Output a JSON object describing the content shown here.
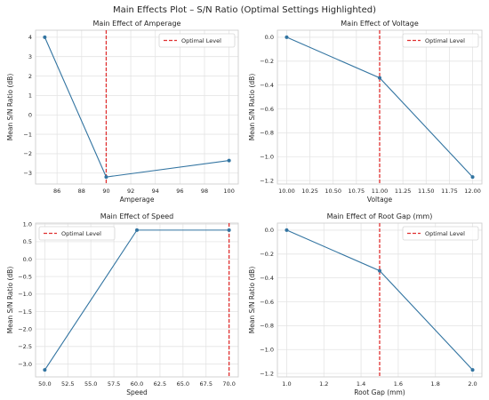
{
  "figure": {
    "title": "Main Effects Plot – S/N Ratio (Optimal Settings Highlighted)"
  },
  "colors": {
    "line": "#3274a1",
    "optimal": "#e03030",
    "grid": "#e4e4e4",
    "frame": "#cfcfcf"
  },
  "chart_data": [
    {
      "type": "line",
      "title": "Main Effect of Amperage",
      "xlabel": "Amperage",
      "ylabel": "Mean S/N Ratio (dB)",
      "x": [
        85,
        90,
        100
      ],
      "y": [
        4.0,
        -3.2,
        -2.35
      ],
      "optimal_x": 90,
      "legend": {
        "label": "Optimal Level",
        "position": "top-right"
      },
      "xlim": [
        84.25,
        100.75
      ],
      "ylim": [
        -3.56,
        4.36
      ],
      "xticks": [
        86,
        88,
        90,
        92,
        94,
        96,
        98,
        100
      ],
      "xtick_labels": [
        "86",
        "88",
        "90",
        "92",
        "94",
        "96",
        "98",
        "100"
      ],
      "yticks": [
        -3,
        -2,
        -1,
        0,
        1,
        2,
        3,
        4
      ],
      "ytick_labels": [
        "−3",
        "−2",
        "−1",
        "0",
        "1",
        "2",
        "3",
        "4"
      ],
      "grid": true
    },
    {
      "type": "line",
      "title": "Main Effect of Voltage",
      "xlabel": "Voltage",
      "ylabel": "Mean S/N Ratio (dB)",
      "x": [
        10,
        11,
        12
      ],
      "y": [
        0.0,
        -0.34,
        -1.17
      ],
      "optimal_x": 11,
      "legend": {
        "label": "Optimal Level",
        "position": "top-right"
      },
      "xlim": [
        9.9,
        12.1
      ],
      "ylim": [
        -1.229,
        0.059
      ],
      "xticks": [
        10.0,
        10.25,
        10.5,
        10.75,
        11.0,
        11.25,
        11.5,
        11.75,
        12.0
      ],
      "xtick_labels": [
        "10.00",
        "10.25",
        "10.50",
        "10.75",
        "11.00",
        "11.25",
        "11.50",
        "11.75",
        "12.00"
      ],
      "yticks": [
        0.0,
        -0.2,
        -0.4,
        -0.6,
        -0.8,
        -1.0,
        -1.2
      ],
      "ytick_labels": [
        "0.0",
        "−0.2",
        "−0.4",
        "−0.6",
        "−0.8",
        "−1.0",
        "−1.2"
      ],
      "grid": true
    },
    {
      "type": "line",
      "title": "Main Effect of Speed",
      "xlabel": "Speed",
      "ylabel": "Mean S/N Ratio (dB)",
      "x": [
        50,
        60,
        70
      ],
      "y": [
        -3.17,
        0.83,
        0.83
      ],
      "optimal_x": 70,
      "legend": {
        "label": "Optimal Level",
        "position": "top-left"
      },
      "xlim": [
        49,
        71
      ],
      "ylim": [
        -3.37,
        1.03
      ],
      "xticks": [
        50.0,
        52.5,
        55.0,
        57.5,
        60.0,
        62.5,
        65.0,
        67.5,
        70.0
      ],
      "xtick_labels": [
        "50.0",
        "52.5",
        "55.0",
        "57.5",
        "60.0",
        "62.5",
        "65.0",
        "67.5",
        "70.0"
      ],
      "yticks": [
        1.0,
        0.5,
        0.0,
        -0.5,
        -1.0,
        -1.5,
        -2.0,
        -2.5,
        -3.0
      ],
      "ytick_labels": [
        "1.0",
        "0.5",
        "0.0",
        "−0.5",
        "−1.0",
        "−1.5",
        "−2.0",
        "−2.5",
        "−3.0"
      ],
      "grid": true
    },
    {
      "type": "line",
      "title": "Main Effect of Root Gap (mm)",
      "xlabel": "Root Gap (mm)",
      "ylabel": "Mean S/N Ratio (dB)",
      "x": [
        1.0,
        1.5,
        2.0
      ],
      "y": [
        0.0,
        -0.34,
        -1.17
      ],
      "optimal_x": 1.5,
      "legend": {
        "label": "Optimal Level",
        "position": "top-right"
      },
      "xlim": [
        0.95,
        2.05
      ],
      "ylim": [
        -1.229,
        0.059
      ],
      "xticks": [
        1.0,
        1.2,
        1.4,
        1.6,
        1.8,
        2.0
      ],
      "xtick_labels": [
        "1.0",
        "1.2",
        "1.4",
        "1.6",
        "1.8",
        "2.0"
      ],
      "yticks": [
        0.0,
        -0.2,
        -0.4,
        -0.6,
        -0.8,
        -1.0,
        -1.2
      ],
      "ytick_labels": [
        "0.0",
        "−0.2",
        "−0.4",
        "−0.6",
        "−0.8",
        "−1.0",
        "−1.2"
      ],
      "grid": true
    }
  ]
}
